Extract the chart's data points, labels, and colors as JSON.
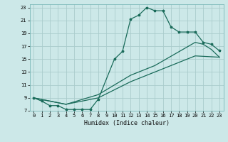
{
  "title": "",
  "xlabel": "Humidex (Indice chaleur)",
  "bg_color": "#cce8e8",
  "grid_color": "#aacccc",
  "line_color": "#1a6b5a",
  "xlim": [
    -0.5,
    23.5
  ],
  "ylim": [
    7,
    23.5
  ],
  "xticks": [
    0,
    1,
    2,
    3,
    4,
    5,
    6,
    7,
    8,
    9,
    10,
    11,
    12,
    13,
    14,
    15,
    16,
    17,
    18,
    19,
    20,
    21,
    22,
    23
  ],
  "yticks": [
    7,
    9,
    11,
    13,
    15,
    17,
    19,
    21,
    23
  ],
  "line1_x": [
    0,
    1,
    2,
    3,
    4,
    5,
    6,
    7,
    8,
    10,
    11,
    12,
    13,
    14,
    15,
    16,
    17,
    18,
    19,
    20,
    21,
    22,
    23
  ],
  "line1_y": [
    9,
    8.5,
    7.8,
    7.8,
    7.2,
    7.2,
    7.2,
    7.2,
    8.8,
    15,
    16.2,
    21.2,
    21.8,
    23,
    22.5,
    22.5,
    20,
    19.2,
    19.2,
    19.2,
    17.6,
    17.3,
    16.3
  ],
  "line2_x": [
    0,
    2,
    4,
    8,
    12,
    15,
    20,
    23
  ],
  "line2_y": [
    9,
    8.5,
    8.0,
    9.0,
    11.5,
    13.0,
    15.5,
    15.3
  ],
  "line3_x": [
    0,
    2,
    4,
    8,
    12,
    15,
    20,
    21,
    22,
    23
  ],
  "line3_y": [
    9,
    8.5,
    8.0,
    9.5,
    12.5,
    14.0,
    17.6,
    17.3,
    16.5,
    15.3
  ]
}
